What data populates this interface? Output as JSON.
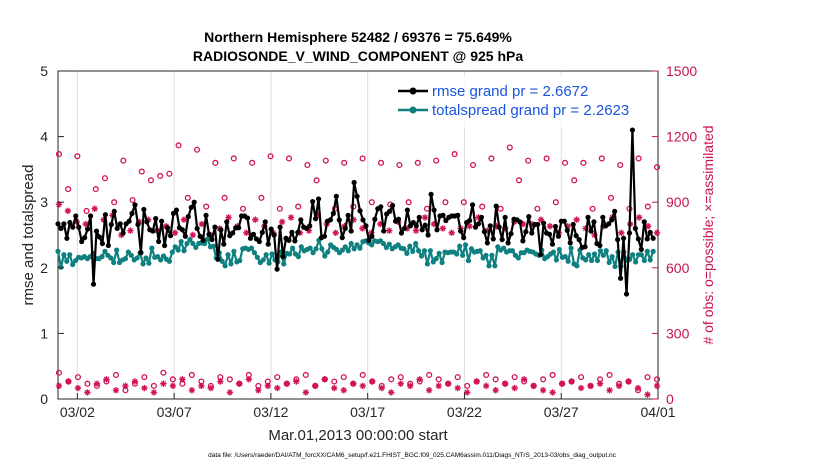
{
  "chart_data": {
    "type": "line",
    "title": "Northern Hemisphere 52482 / 69376 = 75.649%",
    "subtitle": "RADIOSONDE_V_WIND_COMPONENT @ 925 hPa",
    "xlabel": "Mar.01,2013 00:00:00 start",
    "ylabel": "rmse and totalspread",
    "ylabel_right": "# of obs: o=possible; ×=assimilated",
    "footer": "data file: /Users/raeder/DAI/ATM_forcXX/CAM6_setup/f.e21.FHIST_BGC.f09_025.CAM6assim.011/Diags_NTrS_2013-03/obs_diag_output.nc",
    "xlim": [
      0,
      31
    ],
    "ylim": [
      0,
      5
    ],
    "ylim_right": [
      0,
      1500
    ],
    "grid": "vertical",
    "x_ticks": [
      {
        "x": 1,
        "label": "03/02"
      },
      {
        "x": 6,
        "label": "03/07"
      },
      {
        "x": 11,
        "label": "03/12"
      },
      {
        "x": 16,
        "label": "03/17"
      },
      {
        "x": 21,
        "label": "03/22"
      },
      {
        "x": 26,
        "label": "03/27"
      },
      {
        "x": 31,
        "label": "04/01"
      }
    ],
    "y_ticks": [
      "0",
      "1",
      "2",
      "3",
      "4",
      "5"
    ],
    "y_ticks_right": [
      "0",
      "300",
      "600",
      "900",
      "1200",
      "1500"
    ],
    "legend_location": "top-right",
    "colors": {
      "rmse": "#000000",
      "spread": "#0e8080",
      "obs": "#d1135a",
      "axis_right": "#c8144e",
      "legend_text": "#1a55e0"
    },
    "series": [
      {
        "name": "rmse grand pr = 2.6672",
        "color": "#000000",
        "values": [
          2.67,
          2.6,
          2.67,
          2.45,
          2.69,
          2.62,
          2.79,
          2.62,
          2.4,
          2.46,
          2.59,
          2.79,
          1.75,
          2.56,
          2.47,
          2.37,
          2.81,
          2.34,
          2.66,
          2.86,
          2.6,
          2.67,
          2.53,
          2.67,
          2.71,
          2.83,
          2.96,
          2.66,
          2.23,
          2.89,
          2.7,
          2.58,
          2.56,
          2.75,
          2.4,
          2.71,
          2.34,
          2.61,
          2.49,
          2.83,
          2.88,
          2.61,
          2.58,
          2.48,
          2.78,
          2.92,
          3.0,
          2.6,
          2.48,
          2.42,
          2.8,
          2.51,
          2.43,
          2.62,
          2.13,
          2.58,
          2.36,
          2.7,
          2.49,
          2.53,
          2.61,
          2.61,
          2.79,
          2.79,
          2.76,
          2.45,
          2.51,
          2.44,
          2.4,
          2.54,
          2.7,
          2.36,
          2.59,
          2.5,
          1.98,
          2.62,
          2.17,
          2.45,
          2.42,
          2.54,
          2.41,
          2.54,
          2.73,
          2.62,
          2.6,
          2.64,
          3.01,
          2.75,
          3.05,
          2.46,
          2.48,
          2.71,
          2.73,
          2.83,
          3.09,
          2.73,
          2.46,
          2.6,
          2.8,
          2.56,
          3.3,
          3.09,
          2.87,
          2.73,
          2.64,
          2.42,
          2.48,
          2.74,
          2.9,
          2.93,
          2.56,
          2.82,
          2.86,
          2.95,
          2.71,
          2.74,
          2.53,
          2.6,
          2.88,
          2.64,
          2.69,
          2.64,
          2.77,
          2.58,
          2.65,
          2.5,
          3.12,
          2.88,
          2.58,
          2.79,
          2.8,
          2.72,
          2.77,
          2.79,
          2.79,
          2.8,
          2.56,
          2.46,
          2.69,
          2.72,
          2.96,
          2.62,
          2.67,
          2.77,
          2.55,
          2.38,
          2.64,
          2.44,
          2.94,
          2.62,
          2.43,
          2.77,
          2.38,
          2.52,
          2.74,
          2.73,
          2.7,
          2.41,
          2.55,
          2.78,
          2.53,
          2.66,
          2.66,
          2.2,
          2.68,
          2.53,
          2.51,
          2.36,
          2.63,
          2.48,
          2.71,
          2.71,
          2.57,
          2.38,
          2.66,
          2.49,
          2.43,
          2.31,
          2.32,
          2.77,
          2.56,
          2.7,
          2.37,
          2.34,
          2.77,
          2.64,
          2.67,
          2.73,
          2.86,
          2.43,
          1.84,
          2.45,
          1.6,
          2.53,
          4.1,
          2.6,
          2.44,
          2.28,
          2.7,
          2.44,
          2.54,
          2.45
        ]
      },
      {
        "name": "totalspread grand pr = 2.2623",
        "color": "#0e8080",
        "values": [
          2.25,
          2.01,
          2.2,
          2.1,
          2.2,
          2.05,
          2.11,
          2.16,
          2.15,
          2.17,
          2.14,
          2.17,
          2.22,
          2.14,
          2.14,
          2.17,
          2.25,
          2.19,
          2.15,
          2.08,
          2.27,
          2.08,
          2.12,
          2.14,
          2.24,
          2.19,
          2.12,
          2.15,
          2.23,
          2.06,
          2.15,
          2.07,
          2.3,
          2.16,
          2.17,
          2.12,
          2.18,
          2.13,
          2.1,
          2.24,
          2.32,
          2.27,
          2.4,
          2.26,
          2.37,
          2.43,
          2.37,
          2.31,
          2.37,
          2.38,
          2.37,
          2.44,
          2.32,
          2.33,
          2.15,
          2.23,
          2.1,
          2.03,
          2.2,
          2.06,
          2.25,
          2.09,
          2.11,
          2.29,
          2.3,
          2.28,
          2.3,
          2.23,
          2.16,
          2.08,
          2.12,
          2.2,
          2.07,
          2.21,
          2.12,
          2.09,
          2.24,
          2.06,
          2.22,
          2.21,
          2.3,
          2.21,
          2.17,
          2.32,
          2.26,
          2.28,
          2.3,
          2.23,
          2.29,
          2.42,
          2.29,
          2.18,
          2.24,
          2.35,
          2.31,
          2.28,
          2.23,
          2.27,
          2.32,
          2.26,
          2.37,
          2.29,
          2.35,
          2.3,
          2.4,
          2.41,
          2.38,
          2.35,
          2.41,
          2.4,
          2.41,
          2.37,
          2.31,
          2.36,
          2.29,
          2.32,
          2.35,
          2.3,
          2.29,
          2.22,
          2.33,
          2.25,
          2.37,
          2.26,
          2.18,
          2.26,
          2.06,
          2.26,
          2.09,
          2.14,
          2.22,
          2.08,
          2.24,
          2.23,
          2.24,
          2.24,
          2.21,
          2.33,
          2.19,
          2.35,
          2.11,
          2.29,
          2.24,
          2.25,
          2.26,
          2.15,
          2.19,
          2.03,
          2.19,
          2.03,
          2.32,
          2.27,
          2.3,
          2.24,
          2.26,
          2.26,
          2.19,
          2.15,
          2.23,
          2.23,
          2.27,
          2.25,
          2.24,
          2.21,
          2.19,
          2.27,
          2.14,
          2.17,
          2.21,
          2.24,
          2.12,
          2.28,
          2.16,
          2.17,
          2.1,
          2.3,
          2.06,
          2.03,
          2.27,
          2.15,
          2.12,
          2.2,
          2.11,
          2.21,
          2.11,
          2.26,
          2.19,
          2.26,
          2.08,
          2.17,
          2.02,
          2.24,
          2.02,
          2.24,
          2.11,
          2.13,
          2.2,
          2.09,
          2.2,
          2.2,
          2.11,
          2.25,
          2.12,
          2.25
        ]
      }
    ],
    "obs_possible_y_top": [
      1120,
      960,
      1110,
      860,
      960,
      1010,
      900,
      1090,
      910,
      1040,
      1000,
      1020,
      1030,
      1160,
      920,
      1140,
      880,
      1080,
      920,
      1100,
      870,
      1080,
      920,
      1110,
      870,
      1100,
      880,
      1070,
      1000,
      1090,
      870,
      1080,
      880,
      1100,
      900,
      1080,
      890,
      1070,
      900,
      1080,
      870,
      1090,
      900,
      1120,
      900,
      1070,
      880,
      1100,
      870,
      1150,
      1000,
      1090,
      870,
      1100,
      900,
      1080,
      1000,
      1080,
      870,
      1100,
      920,
      1070,
      870,
      1100,
      880,
      1060
    ],
    "obs_assim_y_top": [
      890,
      860,
      810,
      800,
      870,
      820,
      840,
      750,
      770,
      810,
      820,
      770,
      790,
      760,
      820,
      750,
      800,
      750,
      780,
      830,
      790,
      760,
      820,
      790,
      760,
      810,
      830,
      760,
      770,
      840,
      800,
      760,
      790,
      820,
      780,
      760,
      800,
      770,
      810,
      780,
      770,
      830,
      800,
      780,
      760,
      780,
      790,
      830,
      770,
      790,
      780,
      810,
      800,
      800,
      820,
      790,
      760,
      790,
      820,
      780,
      750,
      790,
      830,
      760,
      800,
      830,
      790,
      760
    ],
    "obs_possible_y_bottom": [
      120,
      80,
      100,
      70,
      60,
      80,
      110,
      40,
      70,
      100,
      60,
      120,
      90,
      70,
      110,
      80,
      60,
      100,
      90,
      70,
      110,
      60,
      80,
      100,
      70,
      90,
      110,
      60,
      90,
      80,
      100,
      70,
      110,
      80,
      60,
      90,
      100,
      70,
      80,
      110,
      90,
      70,
      100,
      60,
      80,
      110,
      90,
      70,
      100,
      80,
      60,
      90,
      110,
      70,
      80,
      100,
      60,
      90,
      110,
      70,
      80,
      40,
      100,
      90
    ],
    "obs_assim_y_bottom": [
      60,
      80,
      50,
      30,
      70,
      90,
      40,
      60,
      80,
      50,
      30,
      70,
      60,
      90,
      40,
      60,
      50,
      80,
      30,
      70,
      90,
      40,
      60,
      50,
      70,
      80,
      30,
      60,
      90,
      50,
      40,
      70,
      60,
      80,
      50,
      30,
      70,
      60,
      90,
      40,
      60,
      70,
      50,
      30,
      80,
      60,
      40,
      70,
      50,
      90,
      60,
      40,
      30,
      70,
      80,
      50,
      60,
      70,
      40,
      60,
      80,
      50,
      20,
      60
    ]
  }
}
